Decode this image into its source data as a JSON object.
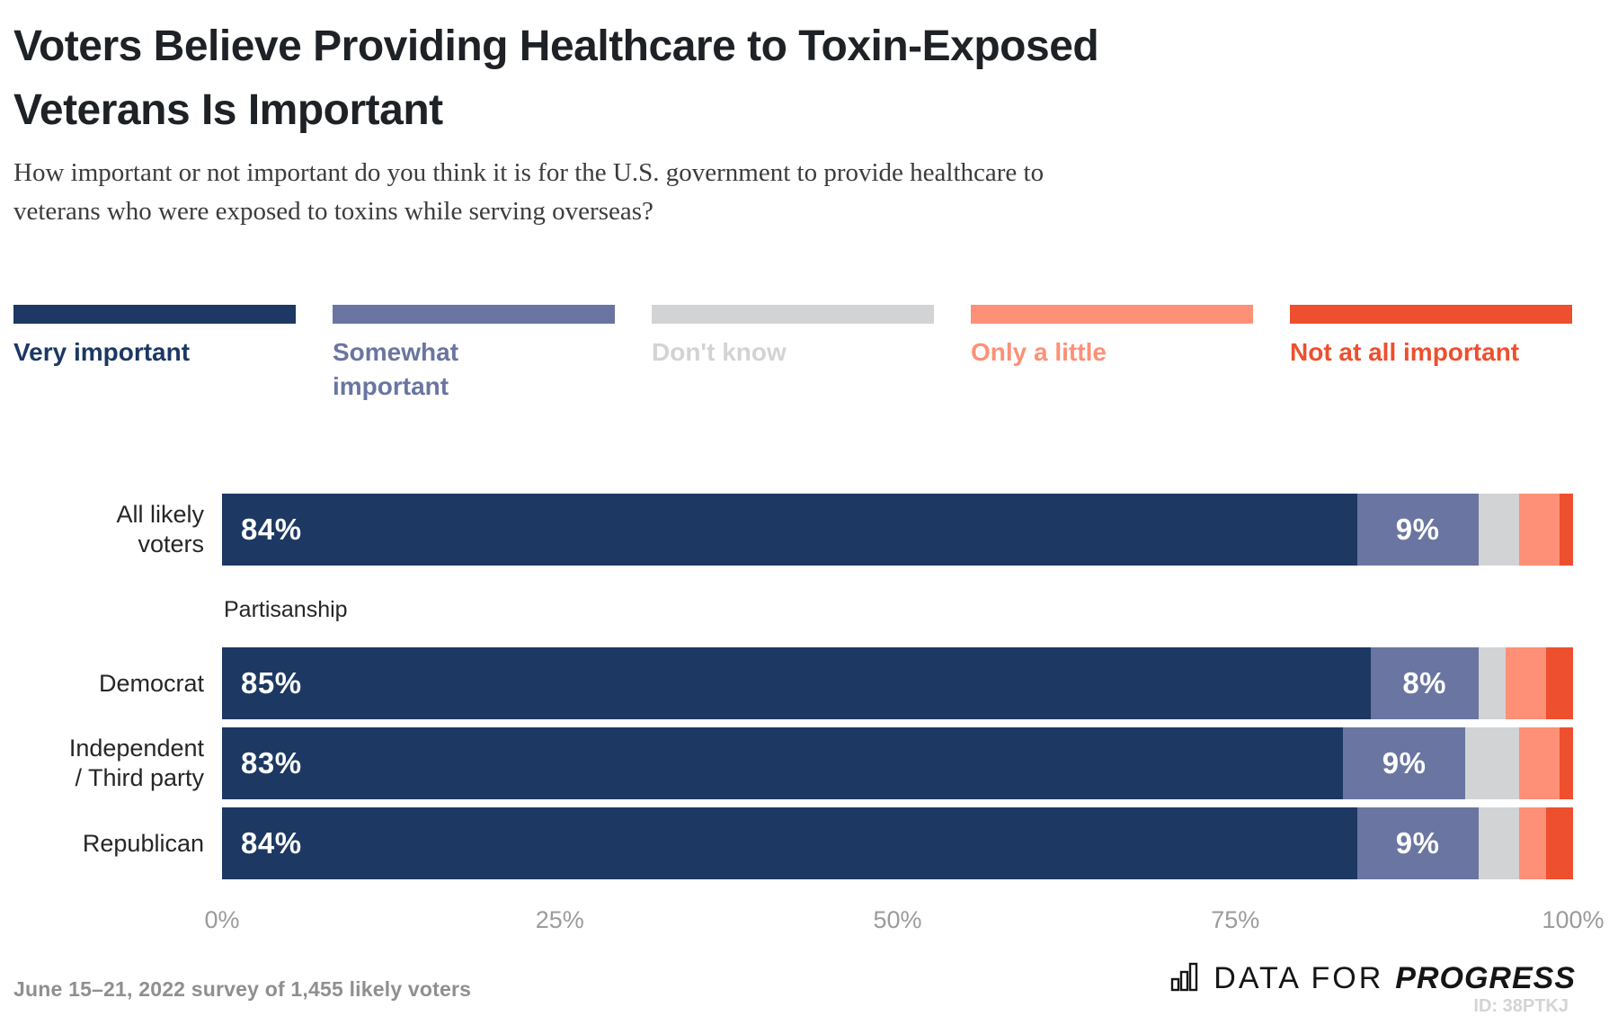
{
  "header": {
    "title_lines": [
      "Voters Believe Providing Healthcare to Toxin-Exposed",
      "Veterans Is Important"
    ],
    "subtitle_lines": [
      "How important or not important do you think it is for the U.S. government to provide healthcare to",
      "veterans who were exposed to toxins while serving overseas?"
    ]
  },
  "chart_data": {
    "type": "bar-stacked-horizontal",
    "title": "Voters Believe Providing Healthcare to Toxin-Exposed Veterans Is Important",
    "question": "How important or not important do you think it is for the U.S. government to provide healthcare to veterans who were exposed to toxins while serving overseas?",
    "legend_position": "top",
    "xlim": [
      0,
      100
    ],
    "xticks": [
      "0%",
      "25%",
      "50%",
      "75%",
      "100%"
    ],
    "group_label": "Partisanship",
    "series_names": [
      "Very important",
      "Somewhat important",
      "Don't know",
      "Only a little",
      "Not at all important"
    ],
    "series_colors": [
      "#1c3863",
      "#6a75a1",
      "#d2d3d5",
      "#fd9077",
      "#ee4f2e"
    ],
    "legend_label_lines": [
      [
        "Very important"
      ],
      [
        "Somewhat",
        "important"
      ],
      [
        "Don't know"
      ],
      [
        "Only a little"
      ],
      [
        "Not at all important"
      ]
    ],
    "rows": [
      {
        "category": "All likely voters",
        "category_lines": [
          "All likely",
          "voters"
        ],
        "values": [
          84,
          9,
          3,
          3,
          1
        ],
        "value_labels": [
          "84%",
          "9%"
        ]
      },
      {
        "category": "Democrat",
        "category_lines": [
          "Democrat"
        ],
        "values": [
          85,
          8,
          2,
          3,
          2
        ],
        "value_labels": [
          "85%",
          "8%"
        ],
        "group": "Partisanship"
      },
      {
        "category": "Independent / Third party",
        "category_lines": [
          "Independent",
          "/ Third party"
        ],
        "values": [
          83,
          9,
          4,
          3,
          1
        ],
        "value_labels": [
          "83%",
          "9%"
        ],
        "group": "Partisanship"
      },
      {
        "category": "Republican",
        "category_lines": [
          "Republican"
        ],
        "values": [
          84,
          9,
          3,
          2,
          2
        ],
        "value_labels": [
          "84%",
          "9%"
        ],
        "group": "Partisanship"
      }
    ]
  },
  "footer": {
    "note": "June 15–21, 2022 survey of 1,455 likely voters",
    "logo_prefix": "DATA FOR",
    "logo_suffix": "PROGRESS",
    "id_text": "ID: 38PTKJ"
  }
}
